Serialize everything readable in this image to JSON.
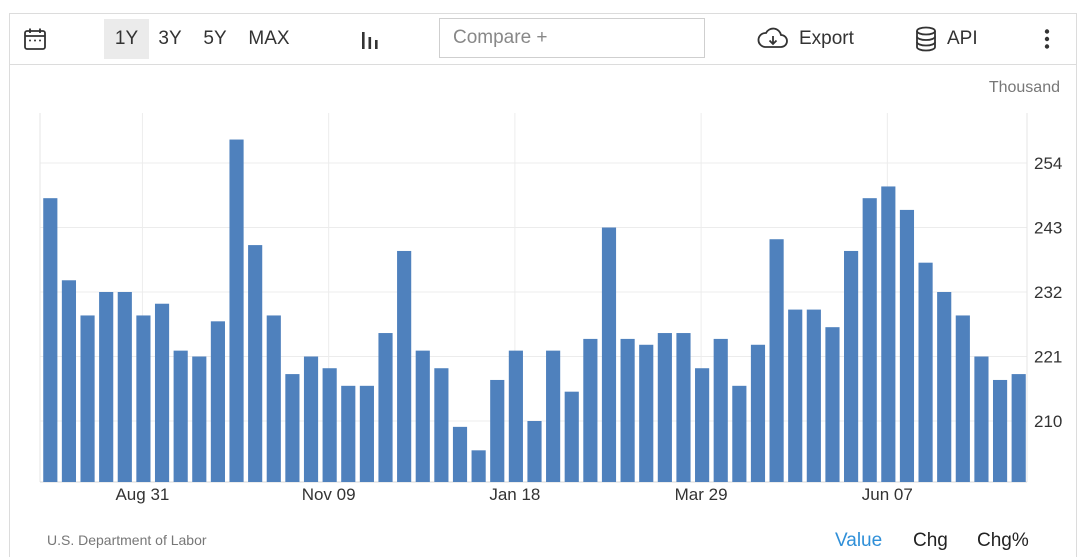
{
  "toolbar": {
    "ranges": [
      "1Y",
      "3Y",
      "5Y",
      "MAX"
    ],
    "active_range": "1Y",
    "compare_placeholder": "Compare +",
    "export_label": "Export",
    "api_label": "API",
    "icons": [
      "calendar-icon",
      "bar-chart-icon",
      "cloud-download-icon",
      "database-icon",
      "more-vertical-icon"
    ]
  },
  "footer": {
    "source": "U.S. Department of Labor",
    "value_label": "Value",
    "chg_label": "Chg",
    "chgpct_label": "Chg%"
  },
  "colors": {
    "bar": "#4f81bd",
    "active_link": "#2f8fd8"
  },
  "chart_data": {
    "type": "bar",
    "unit": "Thousand",
    "y_ticks": [
      210,
      221,
      232,
      243,
      254
    ],
    "ylim": [
      200,
      260
    ],
    "x_tick_labels": [
      "Aug 31",
      "Nov 09",
      "Jan 18",
      "Mar 29",
      "Jun 07"
    ],
    "x_tick_bar_index": [
      5,
      15,
      25,
      35,
      45
    ],
    "grid": true,
    "legend": "none",
    "values": [
      248,
      234,
      228,
      232,
      232,
      228,
      230,
      222,
      221,
      227,
      258,
      240,
      228,
      218,
      221,
      219,
      216,
      216,
      225,
      239,
      222,
      219,
      209,
      205,
      217,
      222,
      210,
      222,
      215,
      224,
      243,
      224,
      223,
      225,
      225,
      219,
      224,
      216,
      223,
      241,
      229,
      229,
      226,
      239,
      248,
      250,
      246,
      237,
      232,
      228,
      221,
      217,
      218
    ]
  }
}
